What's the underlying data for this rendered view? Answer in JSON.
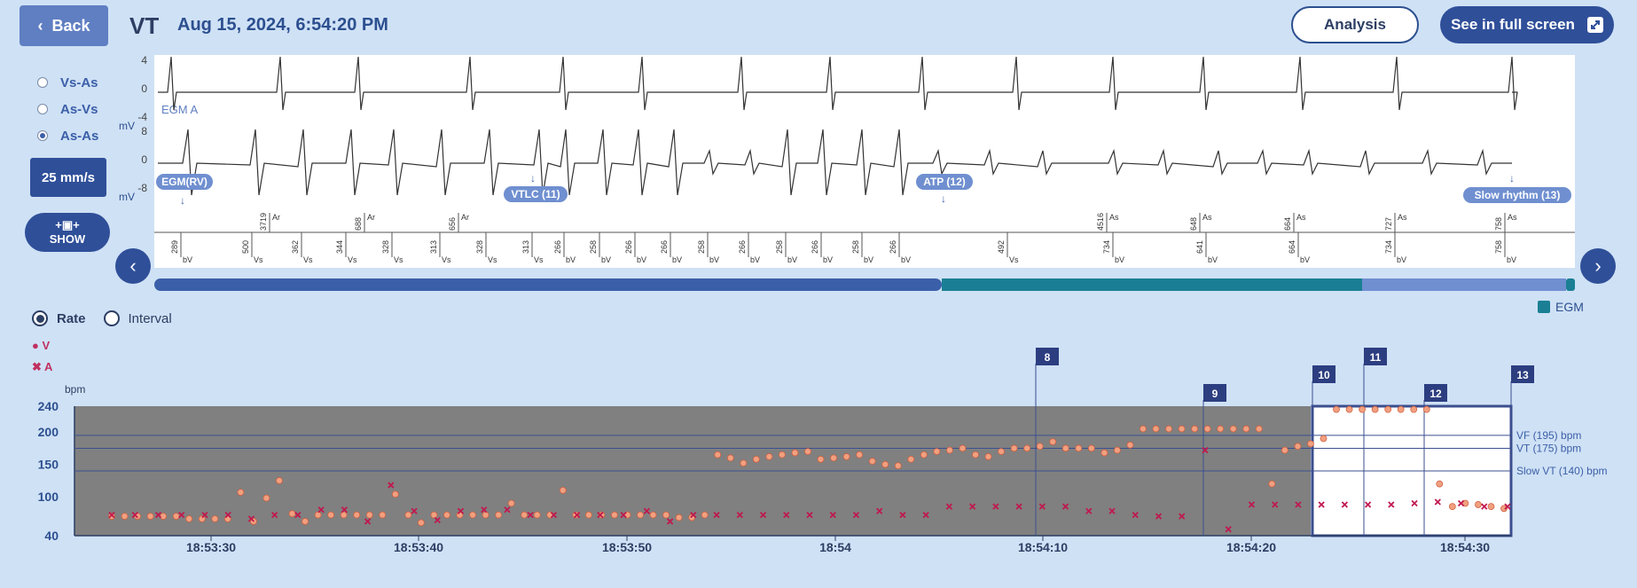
{
  "header": {
    "back_label": "Back",
    "episode_type": "VT",
    "timestamp": "Aug 15, 2024, 6:54:20 PM",
    "analysis_label": "Analysis",
    "fullscreen_label": "See in full screen"
  },
  "sidebar": {
    "radios": [
      {
        "label": "Vs-As",
        "selected": false
      },
      {
        "label": "As-Vs",
        "selected": false
      },
      {
        "label": "As-As",
        "selected": true
      }
    ],
    "speed_label": "25 mm/s",
    "show_label": "SHOW"
  },
  "egm": {
    "channel_a_label": "EGM A",
    "unit": "mV",
    "a_ticks": [
      "4",
      "0",
      "-4"
    ],
    "rv_ticks": [
      "8",
      "0",
      "-8"
    ],
    "tags": [
      {
        "label": "EGM(RV)"
      },
      {
        "label": "VTLC (11)"
      },
      {
        "label": "ATP (12)"
      },
      {
        "label": "Slow rhythm (13)"
      }
    ],
    "marker_labels": {
      "top": [
        "Ar",
        "Ar",
        "Ar",
        "As",
        "As",
        "As",
        "As",
        "As"
      ],
      "top_values": [
        "3719",
        "688",
        "656",
        "4516",
        "648",
        "664",
        "727",
        "758"
      ],
      "bottom_marks": [
        "bV",
        "Vs",
        "Vs",
        "Vs",
        "Vs",
        "Vs",
        "Vs",
        "Vs",
        "bV",
        "bV",
        "bV",
        "bV",
        "bV",
        "bV",
        "bV",
        "bV",
        "bV",
        "bV",
        "Vs",
        "bV",
        "bV",
        "bV",
        "bV",
        "bV"
      ],
      "bottom_values": [
        "289",
        "500",
        "362",
        "344",
        "328",
        "313",
        "328",
        "313",
        "266",
        "258",
        "266",
        "266",
        "258",
        "266",
        "258",
        "266",
        "258",
        "266",
        "492",
        "734",
        "641",
        "664",
        "734",
        "758"
      ]
    },
    "egm_legend": "EGM",
    "colors": {
      "track_blue": "#3b5fa8",
      "track_teal": "#1a7f94",
      "track_light": "#6f8fd0"
    }
  },
  "rate_chart": {
    "mode_rate": "Rate",
    "mode_interval": "Interval",
    "legend_v": "V",
    "legend_a": "A",
    "y_unit": "bpm",
    "y_ticks": [
      "240",
      "200",
      "150",
      "100",
      "40"
    ],
    "x_ticks": [
      "18:53:30",
      "18:53:40",
      "18:53:50",
      "18:54",
      "18:54:10",
      "18:54:20",
      "18:54:30"
    ],
    "zone_lines": [
      {
        "label": "VF (195) bpm",
        "value": 195
      },
      {
        "label": "VT (175) bpm",
        "value": 175
      },
      {
        "label": "Slow VT (140) bpm",
        "value": 140
      }
    ],
    "markers": [
      "8",
      "9",
      "10",
      "11",
      "12",
      "13"
    ],
    "colors": {
      "v": "#f0a080",
      "a": "#c0184e",
      "bg": "#808080",
      "frame": "#3b4f8f"
    }
  },
  "chart_data": {
    "type": "scatter",
    "ylabel": "bpm",
    "ylim": [
      40,
      240
    ],
    "series": [
      {
        "name": "V",
        "values": [
          70,
          70,
          70,
          70,
          70,
          70,
          66,
          66,
          66,
          66,
          107,
          62,
          98,
          125,
          74,
          62,
          72,
          72,
          72,
          72,
          72,
          72,
          104,
          72,
          60,
          72,
          72,
          72,
          72,
          72,
          72,
          90,
          72,
          72,
          72,
          110,
          72,
          72,
          72,
          72,
          72,
          72,
          72,
          72,
          68,
          68,
          72,
          165,
          160,
          152,
          158,
          162,
          165,
          168,
          170,
          158,
          160,
          162,
          165,
          155,
          150,
          148,
          158,
          165,
          170,
          172,
          175,
          165,
          162,
          170,
          175,
          175,
          178,
          185,
          175,
          175,
          175,
          168,
          172,
          180,
          205,
          205,
          205,
          205,
          205,
          205,
          205,
          205,
          205,
          205,
          120,
          172,
          178,
          182,
          190,
          235,
          235,
          235,
          235,
          235,
          235,
          235,
          235,
          120,
          85,
          90,
          88,
          85,
          82
        ]
      },
      {
        "name": "A",
        "values": [
          72,
          72,
          72,
          72,
          72,
          72,
          66,
          72,
          72,
          80,
          80,
          62,
          118,
          78,
          64,
          78,
          80,
          80,
          72,
          72,
          72,
          72,
          72,
          78,
          62,
          72,
          72,
          72,
          72,
          72,
          72,
          72,
          72,
          78,
          72,
          72,
          85,
          85,
          85,
          85,
          85,
          85,
          78,
          78,
          72,
          70,
          70,
          172,
          50,
          88,
          88,
          88,
          88,
          88,
          88,
          88,
          90,
          92,
          90,
          85,
          85
        ]
      }
    ]
  }
}
